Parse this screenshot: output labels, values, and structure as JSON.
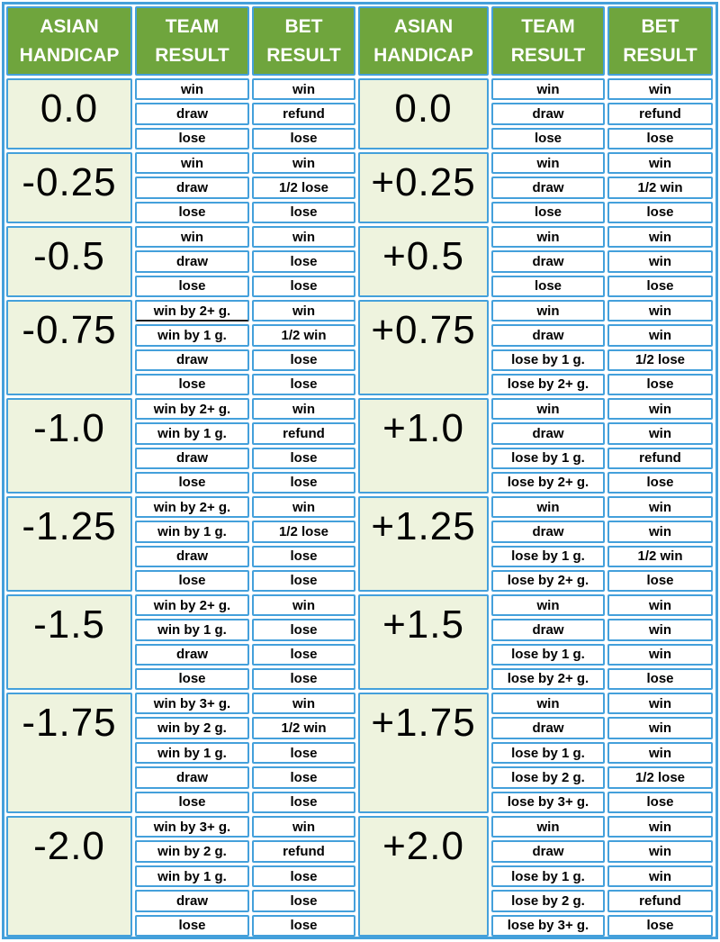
{
  "header": {
    "left": {
      "col1": "ASIAN HANDICAP",
      "col2": "TEAM RESULT",
      "col3": "BET RESULT"
    },
    "right": {
      "col1": "ASIAN HANDICAP",
      "col2": "TEAM RESULT",
      "col3": "BET RESULT"
    }
  },
  "colors": {
    "border_blue": "#44A0DB",
    "header_green": "#6FA53D",
    "handicap_light_green": "#EEF3DE",
    "header_text": "#FFFFFF",
    "cell_bg": "#FFFFFF",
    "cell_text": "#000000"
  },
  "tables": {
    "left": {
      "groups": [
        {
          "handicap": "0.0",
          "rows": [
            {
              "team": "win",
              "bet": "win"
            },
            {
              "team": "draw",
              "bet": "refund"
            },
            {
              "team": "lose",
              "bet": "lose"
            }
          ]
        },
        {
          "handicap": "-0.25",
          "rows": [
            {
              "team": "win",
              "bet": "win"
            },
            {
              "team": "draw",
              "bet": "1/2 lose"
            },
            {
              "team": "lose",
              "bet": "lose"
            }
          ]
        },
        {
          "handicap": "-0.5",
          "rows": [
            {
              "team": "win",
              "bet": "win"
            },
            {
              "team": "draw",
              "bet": "lose"
            },
            {
              "team": "lose",
              "bet": "lose"
            }
          ]
        },
        {
          "handicap": "-0.75",
          "rows": [
            {
              "team": "win by 2+ g.",
              "bet": "win",
              "team_dark_underline": true
            },
            {
              "team": "win by 1 g.",
              "bet": "1/2 win"
            },
            {
              "team": "draw",
              "bet": "lose"
            },
            {
              "team": "lose",
              "bet": "lose"
            }
          ]
        },
        {
          "handicap": "-1.0",
          "rows": [
            {
              "team": "win by 2+ g.",
              "bet": "win"
            },
            {
              "team": "win by 1 g.",
              "bet": "refund"
            },
            {
              "team": "draw",
              "bet": "lose"
            },
            {
              "team": "lose",
              "bet": "lose"
            }
          ]
        },
        {
          "handicap": "-1.25",
          "rows": [
            {
              "team": "win by 2+ g.",
              "bet": "win"
            },
            {
              "team": "win by 1 g.",
              "bet": "1/2 lose"
            },
            {
              "team": "draw",
              "bet": "lose"
            },
            {
              "team": "lose",
              "bet": "lose"
            }
          ]
        },
        {
          "handicap": "-1.5",
          "rows": [
            {
              "team": "win by 2+ g.",
              "bet": "win"
            },
            {
              "team": "win by 1 g.",
              "bet": "lose"
            },
            {
              "team": "draw",
              "bet": "lose"
            },
            {
              "team": "lose",
              "bet": "lose"
            }
          ]
        },
        {
          "handicap": "-1.75",
          "rows": [
            {
              "team": "win by 3+ g.",
              "bet": "win"
            },
            {
              "team": "win by 2 g.",
              "bet": "1/2 win"
            },
            {
              "team": "win by 1 g.",
              "bet": "lose"
            },
            {
              "team": "draw",
              "bet": "lose"
            },
            {
              "team": "lose",
              "bet": "lose"
            }
          ]
        },
        {
          "handicap": "-2.0",
          "rows": [
            {
              "team": "win by 3+ g.",
              "bet": "win"
            },
            {
              "team": "win by 2 g.",
              "bet": "refund"
            },
            {
              "team": "win by 1 g.",
              "bet": "lose"
            },
            {
              "team": "draw",
              "bet": "lose"
            },
            {
              "team": "lose",
              "bet": "lose"
            }
          ]
        }
      ]
    },
    "right": {
      "groups": [
        {
          "handicap": "0.0",
          "rows": [
            {
              "team": "win",
              "bet": "win"
            },
            {
              "team": "draw",
              "bet": "refund"
            },
            {
              "team": "lose",
              "bet": "lose"
            }
          ]
        },
        {
          "handicap": "+0.25",
          "rows": [
            {
              "team": "win",
              "bet": "win"
            },
            {
              "team": "draw",
              "bet": "1/2 win"
            },
            {
              "team": "lose",
              "bet": "lose"
            }
          ]
        },
        {
          "handicap": "+0.5",
          "rows": [
            {
              "team": "win",
              "bet": "win"
            },
            {
              "team": "draw",
              "bet": "win"
            },
            {
              "team": "lose",
              "bet": "lose"
            }
          ]
        },
        {
          "handicap": "+0.75",
          "rows": [
            {
              "team": "win",
              "bet": "win"
            },
            {
              "team": "draw",
              "bet": "win"
            },
            {
              "team": "lose by 1 g.",
              "bet": "1/2 lose"
            },
            {
              "team": "lose by 2+ g.",
              "bet": "lose"
            }
          ]
        },
        {
          "handicap": "+1.0",
          "rows": [
            {
              "team": "win",
              "bet": "win"
            },
            {
              "team": "draw",
              "bet": "win"
            },
            {
              "team": "lose by 1 g.",
              "bet": "refund"
            },
            {
              "team": "lose by 2+ g.",
              "bet": "lose"
            }
          ]
        },
        {
          "handicap": "+1.25",
          "rows": [
            {
              "team": "win",
              "bet": "win"
            },
            {
              "team": "draw",
              "bet": "win"
            },
            {
              "team": "lose by 1 g.",
              "bet": "1/2 win"
            },
            {
              "team": "lose by 2+ g.",
              "bet": "lose"
            }
          ]
        },
        {
          "handicap": "+1.5",
          "rows": [
            {
              "team": "win",
              "bet": "win"
            },
            {
              "team": "draw",
              "bet": "win"
            },
            {
              "team": "lose by 1 g.",
              "bet": "win"
            },
            {
              "team": "lose by 2+ g.",
              "bet": "lose"
            }
          ]
        },
        {
          "handicap": "+1.75",
          "rows": [
            {
              "team": "win",
              "bet": "win"
            },
            {
              "team": "draw",
              "bet": "win"
            },
            {
              "team": "lose by 1 g.",
              "bet": "win"
            },
            {
              "team": "lose by 2 g.",
              "bet": "1/2 lose"
            },
            {
              "team": "lose by 3+ g.",
              "bet": "lose"
            }
          ]
        },
        {
          "handicap": "+2.0",
          "rows": [
            {
              "team": "win",
              "bet": "win"
            },
            {
              "team": "draw",
              "bet": "win"
            },
            {
              "team": "lose by 1 g.",
              "bet": "win"
            },
            {
              "team": "lose by 2 g.",
              "bet": "refund"
            },
            {
              "team": "lose by 3+ g.",
              "bet": "lose"
            }
          ]
        }
      ]
    }
  }
}
